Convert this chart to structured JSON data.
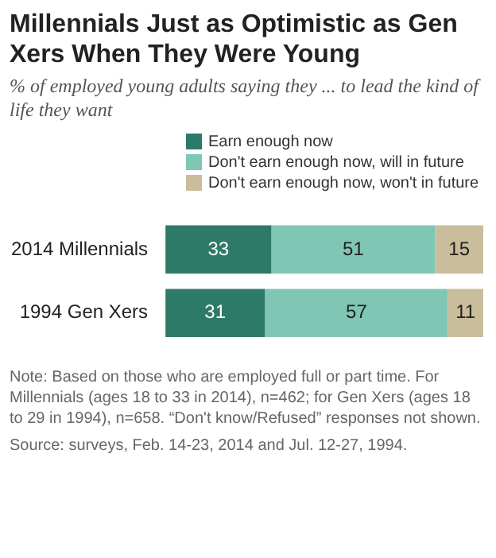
{
  "chart_data": {
    "type": "bar",
    "orientation": "horizontal",
    "stacked": true,
    "data_labels": true,
    "legend": "top right",
    "title": "Millennials Just as Optimistic as Gen Xers When They Were Young",
    "subtitle": "% of employed young adults saying they ... to lead the kind of life they want",
    "categories": [
      "2014 Millennials",
      "1994 Gen Xers"
    ],
    "series": [
      {
        "name": "Earn enough now",
        "color": "#2e7a68",
        "values": [
          33,
          31
        ]
      },
      {
        "name": "Don't earn enough now, will in future",
        "color": "#7fc7b4",
        "values": [
          51,
          57
        ]
      },
      {
        "name": "Don't earn enough now, won't in future",
        "color": "#c9bd9b",
        "values": [
          15,
          11
        ]
      }
    ],
    "annotations": [
      "Note: Based on those who are employed full or part time. For Millennials (ages 18 to 33 in 2014), n=462; for Gen Xers (ages 18 to 29 in 1994), n=658. “Don't know/Refused” responses not shown.",
      "Source: surveys, Feb. 14-23, 2014 and Jul. 12-27, 1994."
    ]
  }
}
